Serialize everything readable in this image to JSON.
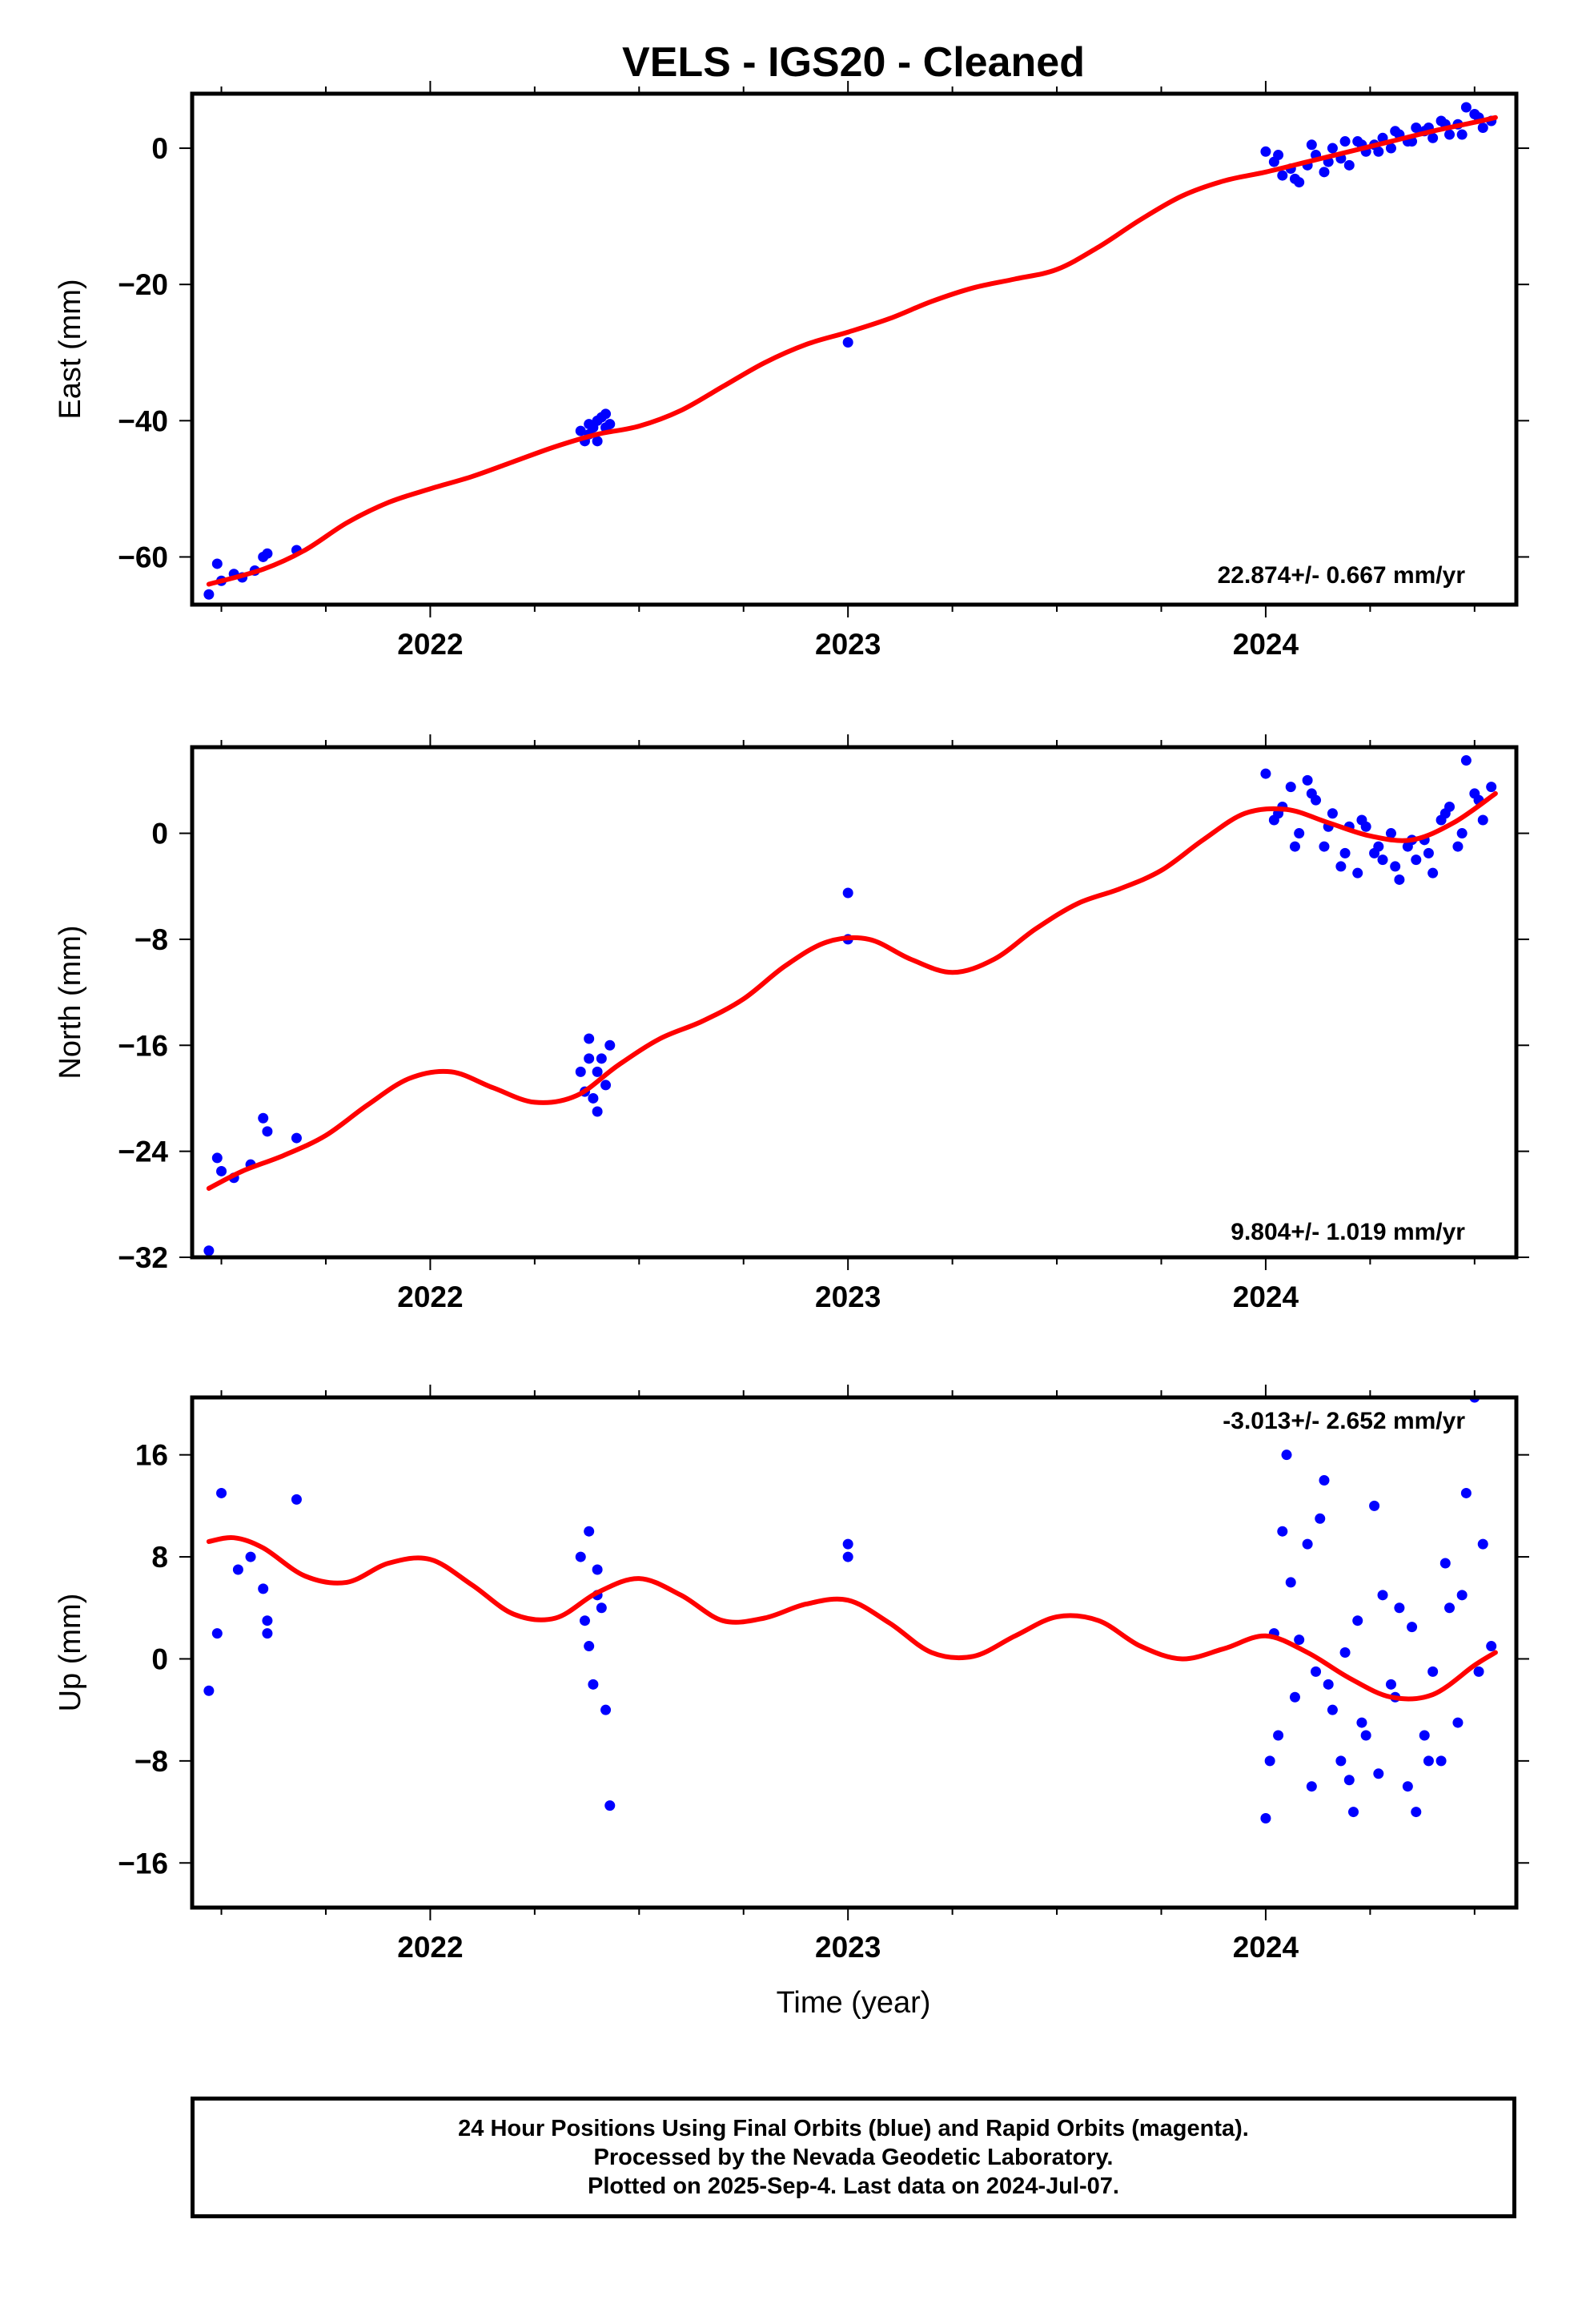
{
  "title": "VELS  - IGS20 - Cleaned",
  "xlabel": "Time (year)",
  "footer": {
    "line1": "24 Hour Positions Using Final Orbits (blue) and Rapid Orbits (magenta).",
    "line2": "Processed by the Nevada Geodetic Laboratory.",
    "line3": "Plotted on 2025-Sep-4. Last data on 2024-Jul-07."
  },
  "colors": {
    "points": "#0000ff",
    "fit": "#ff0000",
    "frame": "#000000"
  },
  "chart_data": [
    {
      "type": "scatter",
      "ylabel": "East (mm)",
      "rate_text": "22.874+/- 0.667 mm/yr",
      "xlim": [
        2021.43,
        2024.6
      ],
      "ylim": [
        -67,
        8
      ],
      "xticks": [
        2022,
        2023,
        2024
      ],
      "yticks": [
        -60,
        -40,
        -20,
        0
      ],
      "fit": {
        "x": [
          2021.47,
          2021.6,
          2021.7,
          2021.8,
          2021.9,
          2022.0,
          2022.1,
          2022.2,
          2022.3,
          2022.4,
          2022.5,
          2022.6,
          2022.7,
          2022.8,
          2022.9,
          2023.0,
          2023.1,
          2023.2,
          2023.3,
          2023.4,
          2023.5,
          2023.6,
          2023.7,
          2023.8,
          2023.9,
          2024.0,
          2024.1,
          2024.2,
          2024.3,
          2024.4,
          2024.5,
          2024.55
        ],
        "y": [
          -64,
          -61.8,
          -59,
          -55,
          -52,
          -50,
          -48.2,
          -46,
          -43.8,
          -42,
          -40.8,
          -38.5,
          -35,
          -31.5,
          -28.8,
          -27,
          -25,
          -22.5,
          -20.5,
          -19.2,
          -17.8,
          -14.5,
          -10.5,
          -7,
          -4.8,
          -3.5,
          -2,
          -0.5,
          1,
          2.5,
          3.8,
          4.5
        ]
      },
      "series": [
        {
          "name": "Final Orbits",
          "x": [
            2021.47,
            2021.49,
            2021.5,
            2021.53,
            2021.55,
            2021.58,
            2021.6,
            2021.61,
            2021.68,
            2022.36,
            2022.37,
            2022.38,
            2022.38,
            2022.39,
            2022.4,
            2022.4,
            2022.41,
            2022.42,
            2022.42,
            2022.43,
            2023.0,
            2024.0,
            2024.02,
            2024.04,
            2024.06,
            2024.08,
            2024.1,
            2024.12,
            2024.14,
            2024.16,
            2024.18,
            2024.2,
            2024.22,
            2024.24,
            2024.26,
            2024.28,
            2024.3,
            2024.32,
            2024.34,
            2024.36,
            2024.38,
            2024.4,
            2024.42,
            2024.44,
            2024.46,
            2024.48,
            2024.5,
            2024.52,
            2024.54,
            2024.03,
            2024.07,
            2024.11,
            2024.15,
            2024.19,
            2024.23,
            2024.27,
            2024.31,
            2024.35,
            2024.39,
            2024.43,
            2024.47,
            2024.51
          ],
          "y": [
            -65.5,
            -61,
            -63.5,
            -62.5,
            -63,
            -62,
            -60,
            -59.5,
            -59,
            -41.5,
            -43,
            -42,
            -40.5,
            -41,
            -43,
            -40,
            -39.5,
            -41,
            -39,
            -40.5,
            -28.5,
            -0.5,
            -2,
            -4,
            -3,
            -5,
            -2.5,
            -1,
            -3.5,
            0,
            -1.5,
            -2.5,
            1,
            -0.5,
            0.5,
            1.5,
            0,
            2,
            1,
            3,
            2.5,
            1.5,
            4,
            2,
            3.5,
            6,
            5,
            3,
            4,
            -1,
            -4.5,
            0.5,
            -2,
            1,
            0.5,
            -0.5,
            2.5,
            1,
            3,
            3.5,
            2,
            4.5
          ]
        }
      ]
    },
    {
      "type": "scatter",
      "ylabel": "North (mm)",
      "rate_text": "9.804+/- 1.019 mm/yr",
      "xlim": [
        2021.43,
        2024.6
      ],
      "ylim": [
        -32,
        6.5
      ],
      "xticks": [
        2022,
        2023,
        2024
      ],
      "yticks": [
        -32,
        -24,
        -16,
        -8,
        0
      ],
      "fit": {
        "x": [
          2021.47,
          2021.55,
          2021.65,
          2021.75,
          2021.85,
          2021.95,
          2022.05,
          2022.15,
          2022.25,
          2022.35,
          2022.45,
          2022.55,
          2022.65,
          2022.75,
          2022.85,
          2022.95,
          2023.05,
          2023.15,
          2023.25,
          2023.35,
          2023.45,
          2023.55,
          2023.65,
          2023.75,
          2023.85,
          2023.95,
          2024.05,
          2024.15,
          2024.25,
          2024.35,
          2024.45,
          2024.55
        ],
        "y": [
          -26.8,
          -25.5,
          -24.3,
          -22.8,
          -20.5,
          -18.5,
          -18,
          -19.2,
          -20.3,
          -19.8,
          -17.5,
          -15.5,
          -14.2,
          -12.5,
          -10,
          -8.2,
          -8,
          -9.5,
          -10.5,
          -9.5,
          -7.2,
          -5.3,
          -4.2,
          -2.8,
          -0.5,
          1.5,
          1.8,
          0.8,
          -0.2,
          -0.5,
          0.8,
          3
        ]
      },
      "series": [
        {
          "name": "Final Orbits",
          "x": [
            2021.47,
            2021.49,
            2021.5,
            2021.53,
            2021.57,
            2021.6,
            2021.61,
            2021.68,
            2022.36,
            2022.37,
            2022.38,
            2022.38,
            2022.39,
            2022.4,
            2022.4,
            2022.41,
            2022.42,
            2022.43,
            2023.0,
            2023.0,
            2024.0,
            2024.02,
            2024.04,
            2024.06,
            2024.08,
            2024.1,
            2024.12,
            2024.14,
            2024.16,
            2024.18,
            2024.2,
            2024.22,
            2024.24,
            2024.26,
            2024.28,
            2024.3,
            2024.32,
            2024.34,
            2024.36,
            2024.38,
            2024.4,
            2024.42,
            2024.44,
            2024.46,
            2024.48,
            2024.5,
            2024.52,
            2024.54,
            2024.03,
            2024.07,
            2024.11,
            2024.15,
            2024.19,
            2024.23,
            2024.27,
            2024.31,
            2024.35,
            2024.39,
            2024.43,
            2024.47,
            2024.51
          ],
          "y": [
            -31.5,
            -24.5,
            -25.5,
            -26,
            -25,
            -21.5,
            -22.5,
            -23,
            -18,
            -19.5,
            -17,
            -15.5,
            -20,
            -18,
            -21,
            -17,
            -19,
            -16,
            -4.5,
            -8,
            4.5,
            1,
            2,
            3.5,
            0,
            4,
            2.5,
            -1,
            1.5,
            -2.5,
            0.5,
            -3,
            0.5,
            -1.5,
            -2,
            0,
            -3.5,
            -1,
            -2,
            -0.5,
            -3,
            1,
            2,
            -1,
            5.5,
            3,
            1,
            3.5,
            1.5,
            -1,
            3,
            0.5,
            -1.5,
            1,
            -1,
            -2.5,
            -0.5,
            -1.5,
            1.5,
            0,
            2.5
          ]
        }
      ]
    },
    {
      "type": "scatter",
      "ylabel": "Up (mm)",
      "rate_text": "-3.013+/- 2.652 mm/yr",
      "xlim": [
        2021.43,
        2024.6
      ],
      "ylim": [
        -19.5,
        20.5
      ],
      "xticks": [
        2022,
        2023,
        2024
      ],
      "yticks": [
        -16,
        -8,
        0,
        8,
        16
      ],
      "fit": {
        "x": [
          2021.47,
          2021.53,
          2021.6,
          2021.7,
          2021.8,
          2021.9,
          2022.0,
          2022.1,
          2022.2,
          2022.3,
          2022.4,
          2022.5,
          2022.6,
          2022.7,
          2022.8,
          2022.9,
          2023.0,
          2023.1,
          2023.2,
          2023.3,
          2023.4,
          2023.5,
          2023.6,
          2023.7,
          2023.8,
          2023.9,
          2024.0,
          2024.1,
          2024.2,
          2024.3,
          2024.4,
          2024.5,
          2024.55
        ],
        "y": [
          9.2,
          9.5,
          8.7,
          6.5,
          6,
          7.5,
          7.8,
          5.8,
          3.5,
          3.2,
          5.2,
          6.3,
          5,
          3,
          3.2,
          4.3,
          4.6,
          2.8,
          0.5,
          0.2,
          1.8,
          3.3,
          3,
          1,
          0,
          0.8,
          1.8,
          0.5,
          -1.5,
          -3,
          -2.8,
          -0.5,
          0.5
        ]
      },
      "series": [
        {
          "name": "Final Orbits",
          "x": [
            2021.47,
            2021.49,
            2021.5,
            2021.54,
            2021.57,
            2021.6,
            2021.61,
            2021.61,
            2021.68,
            2022.36,
            2022.37,
            2022.38,
            2022.38,
            2022.39,
            2022.4,
            2022.4,
            2022.41,
            2022.42,
            2022.43,
            2023.0,
            2023.0,
            2024.0,
            2024.01,
            2024.02,
            2024.04,
            2024.06,
            2024.08,
            2024.1,
            2024.12,
            2024.14,
            2024.16,
            2024.18,
            2024.2,
            2024.22,
            2024.24,
            2024.26,
            2024.28,
            2024.3,
            2024.32,
            2024.34,
            2024.36,
            2024.38,
            2024.4,
            2024.42,
            2024.44,
            2024.46,
            2024.48,
            2024.5,
            2024.52,
            2024.54,
            2024.03,
            2024.07,
            2024.11,
            2024.15,
            2024.19,
            2024.23,
            2024.27,
            2024.31,
            2024.35,
            2024.39,
            2024.43,
            2024.47,
            2024.51,
            2024.05,
            2024.13,
            2024.21
          ],
          "y": [
            -2.5,
            2,
            13,
            7,
            8,
            5.5,
            3,
            2,
            12.5,
            8,
            3,
            10,
            1,
            -2,
            5,
            7,
            4,
            -4,
            -11.5,
            9,
            8,
            -12.5,
            -8,
            2,
            10,
            6,
            1.5,
            9,
            -1,
            14,
            -4,
            -8,
            -9.5,
            3,
            -6,
            12,
            5,
            -2,
            4,
            -10,
            -12,
            -6,
            -1,
            -8,
            4,
            -5,
            13,
            20.5,
            9,
            1,
            -6,
            -3,
            -10,
            -2,
            0.5,
            -5,
            -9,
            -3,
            2.5,
            -8,
            7.5,
            5,
            -1,
            16,
            11,
            -12
          ]
        }
      ]
    }
  ]
}
